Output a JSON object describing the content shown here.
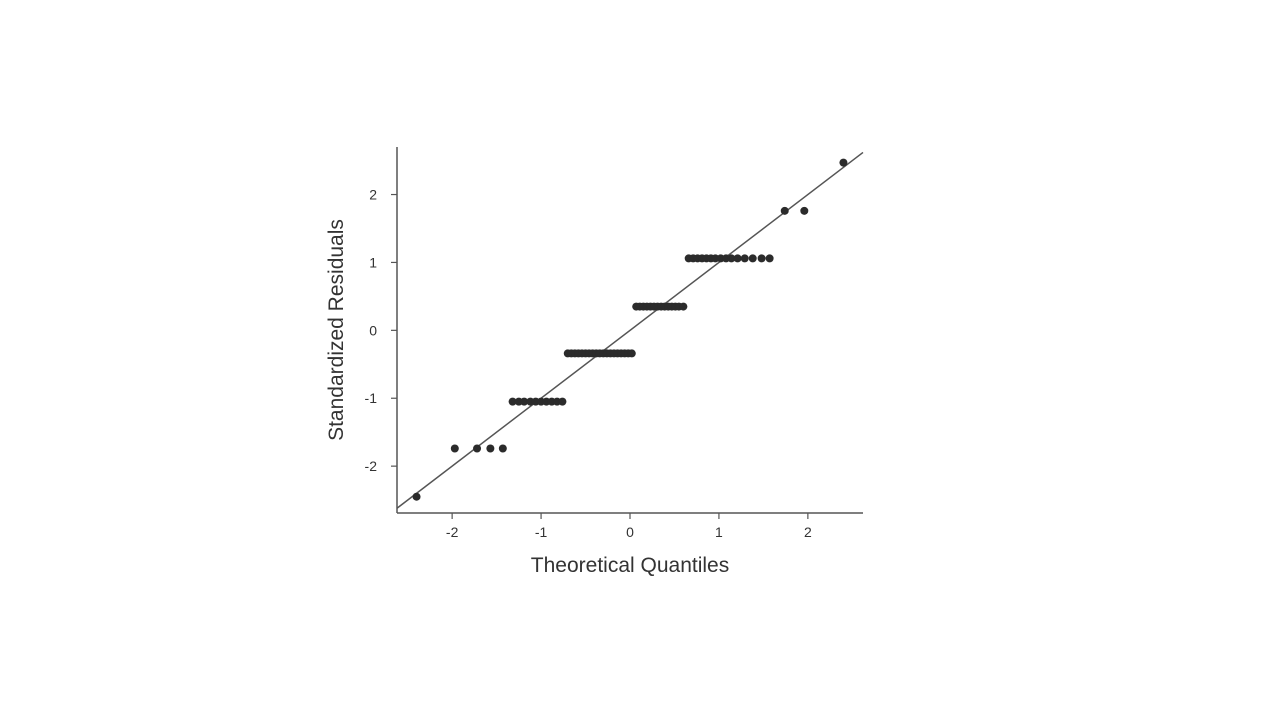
{
  "chart_data": {
    "type": "scatter",
    "xlabel": "Theoretical Quantiles",
    "ylabel": "Standardized Residuals",
    "xlim": [
      -2.62,
      2.62
    ],
    "ylim": [
      -2.69,
      2.7
    ],
    "x_ticks": [
      -2,
      -1,
      0,
      1,
      2
    ],
    "y_ticks": [
      -2,
      -1,
      0,
      1,
      2
    ],
    "x_tick_labels": [
      "-2",
      "-1",
      "0",
      "1",
      "2"
    ],
    "y_tick_labels": [
      "-2",
      "-1",
      "0",
      "1",
      "2"
    ],
    "grid": false,
    "reference_line": {
      "slope": 1.0,
      "intercept": 0.0
    },
    "colors": {
      "points": "#2b2b2b",
      "line": "#555555",
      "axes": "#555555",
      "text": "#333333"
    },
    "series": [
      {
        "points": [
          [
            -2.4,
            -2.45
          ],
          [
            -1.97,
            -1.74
          ],
          [
            -1.72,
            -1.74
          ],
          [
            -1.57,
            -1.74
          ],
          [
            -1.43,
            -1.74
          ],
          [
            -1.32,
            -1.05
          ],
          [
            -1.25,
            -1.05
          ],
          [
            -1.19,
            -1.05
          ],
          [
            -1.12,
            -1.05
          ],
          [
            -1.06,
            -1.05
          ],
          [
            -1.0,
            -1.05
          ],
          [
            -0.94,
            -1.05
          ],
          [
            -0.88,
            -1.05
          ],
          [
            -0.82,
            -1.05
          ],
          [
            -0.76,
            -1.05
          ],
          [
            -0.7,
            -0.34
          ],
          [
            -0.66,
            -0.34
          ],
          [
            -0.62,
            -0.34
          ],
          [
            -0.58,
            -0.34
          ],
          [
            -0.54,
            -0.34
          ],
          [
            -0.5,
            -0.34
          ],
          [
            -0.46,
            -0.34
          ],
          [
            -0.42,
            -0.34
          ],
          [
            -0.38,
            -0.34
          ],
          [
            -0.34,
            -0.34
          ],
          [
            -0.3,
            -0.34
          ],
          [
            -0.26,
            -0.34
          ],
          [
            -0.22,
            -0.34
          ],
          [
            -0.18,
            -0.34
          ],
          [
            -0.14,
            -0.34
          ],
          [
            -0.1,
            -0.34
          ],
          [
            -0.06,
            -0.34
          ],
          [
            -0.02,
            -0.34
          ],
          [
            0.02,
            -0.34
          ],
          [
            0.07,
            0.35
          ],
          [
            0.11,
            0.35
          ],
          [
            0.15,
            0.35
          ],
          [
            0.19,
            0.35
          ],
          [
            0.23,
            0.35
          ],
          [
            0.27,
            0.35
          ],
          [
            0.31,
            0.35
          ],
          [
            0.35,
            0.35
          ],
          [
            0.39,
            0.35
          ],
          [
            0.43,
            0.35
          ],
          [
            0.47,
            0.35
          ],
          [
            0.51,
            0.35
          ],
          [
            0.55,
            0.35
          ],
          [
            0.6,
            0.35
          ],
          [
            0.66,
            1.06
          ],
          [
            0.71,
            1.06
          ],
          [
            0.76,
            1.06
          ],
          [
            0.81,
            1.06
          ],
          [
            0.86,
            1.06
          ],
          [
            0.91,
            1.06
          ],
          [
            0.96,
            1.06
          ],
          [
            1.02,
            1.06
          ],
          [
            1.08,
            1.06
          ],
          [
            1.14,
            1.06
          ],
          [
            1.21,
            1.06
          ],
          [
            1.29,
            1.06
          ],
          [
            1.38,
            1.06
          ],
          [
            1.48,
            1.06
          ],
          [
            1.57,
            1.06
          ],
          [
            1.74,
            1.76
          ],
          [
            1.96,
            1.76
          ],
          [
            2.4,
            2.47
          ]
        ]
      }
    ]
  }
}
